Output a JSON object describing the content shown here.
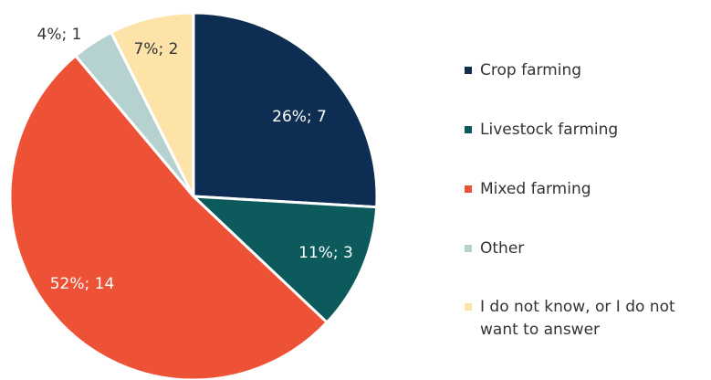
{
  "chart_data": {
    "type": "pie",
    "title": "",
    "slices": [
      {
        "name": "Crop farming",
        "value": 7,
        "percent": "26%",
        "label": "26%;  7",
        "color": "#0d2e52"
      },
      {
        "name": "Livestock farming",
        "value": 3,
        "percent": "11%",
        "label": "11%;  3",
        "color": "#0c5a5c"
      },
      {
        "name": "Mixed farming",
        "value": 14,
        "percent": "52%",
        "label": "52%;  14",
        "color": "#ee5236"
      },
      {
        "name": "Other",
        "value": 1,
        "percent": "4%",
        "label": "4%;  1",
        "color": "#b5d2d0"
      },
      {
        "name": "I do not know, or I do not want to answer",
        "value": 2,
        "percent": "7%",
        "label": "7%;  2",
        "color": "#fde3a8"
      }
    ],
    "legend": {
      "position": "right",
      "entries": [
        {
          "line1": "Crop farming",
          "line2": ""
        },
        {
          "line1": "Livestock farming",
          "line2": ""
        },
        {
          "line1": "Mixed farming",
          "line2": ""
        },
        {
          "line1": "Other",
          "line2": ""
        },
        {
          "line1": "I do not know, or I do not",
          "line2": "want to answer"
        }
      ]
    }
  }
}
